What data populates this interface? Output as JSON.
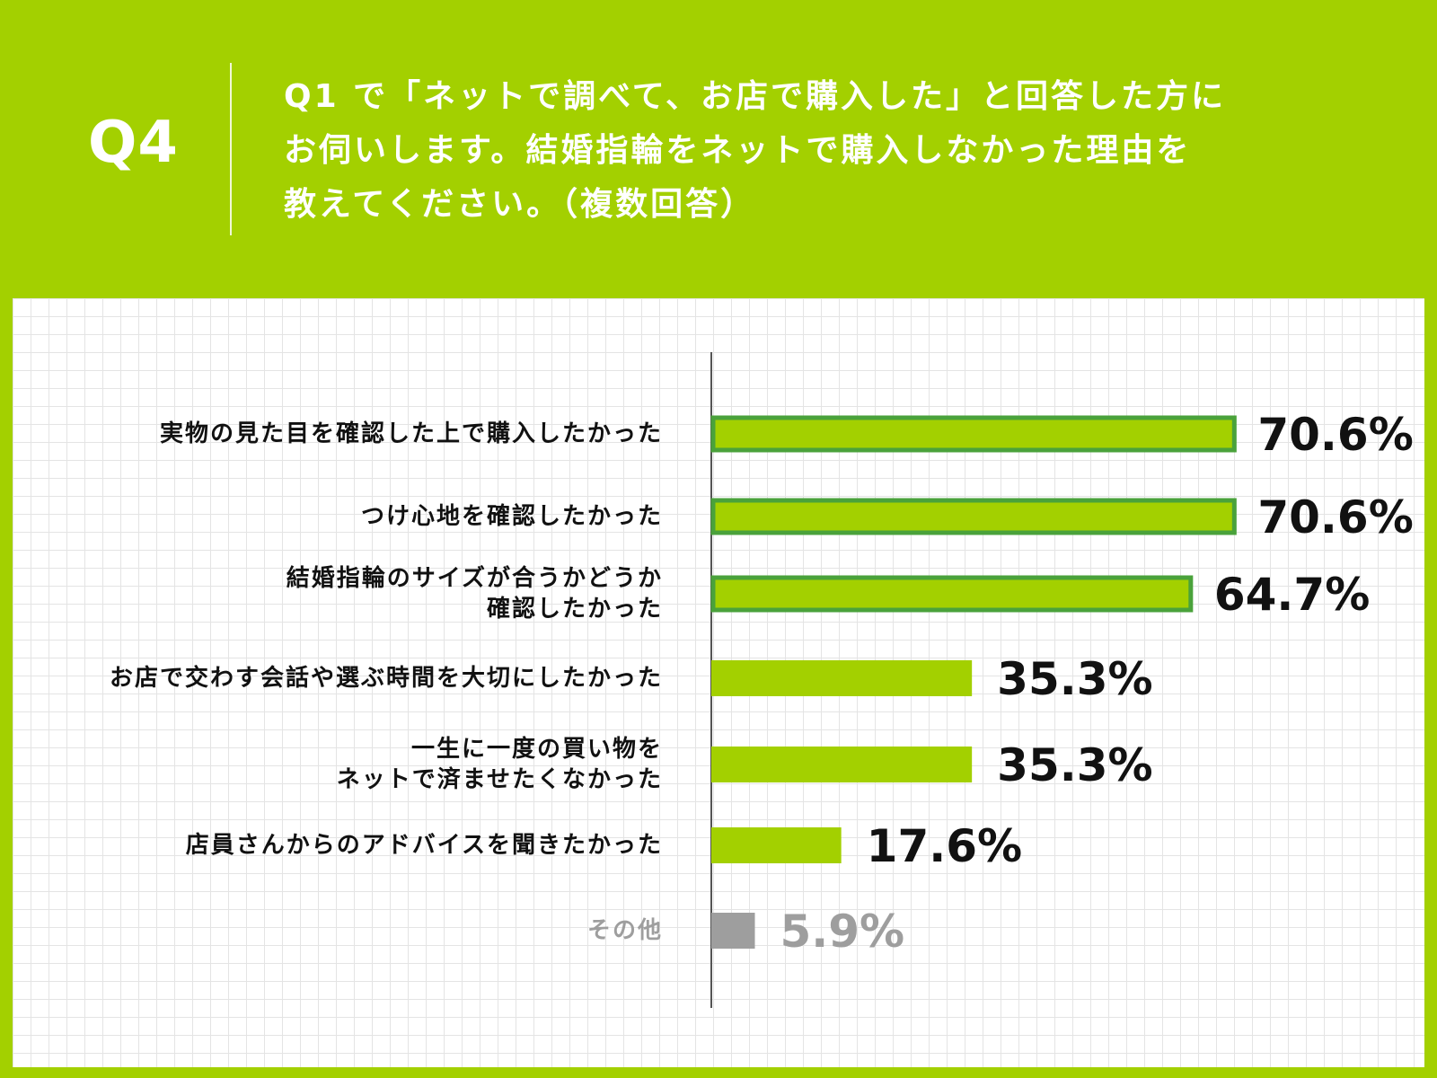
{
  "header": {
    "q_label": "Q4",
    "question_lines": [
      "Q1 で「ネットで調べて、お店で購入した」と回答した方に",
      "お伺いします。結婚指輪をネットで購入しなかった理由を",
      "教えてください。（複数回答）"
    ]
  },
  "colors": {
    "background": "#a3d000",
    "bar_fill": "#a3d000",
    "bar_outline": "#4aa23b",
    "other_bar": "#9e9e9e",
    "label_text": "#111111",
    "other_text": "#9e9e9e"
  },
  "chart_data": {
    "type": "bar",
    "orientation": "horizontal",
    "categories": [
      "実物の見た目を確認した上で購入したかった",
      "つけ心地を確認したかった",
      "結婚指輪のサイズが合うかどうか\n確認したかった",
      "お店で交わす会話や選ぶ時間を大切にしたかった",
      "一生に一度の買い物を\nネットで済ませたくなかった",
      "店員さんからのアドバイスを聞きたかった",
      "その他"
    ],
    "values": [
      70.6,
      70.6,
      64.7,
      35.3,
      35.3,
      17.6,
      5.9
    ],
    "value_labels": [
      "70.6%",
      "70.6%",
      "64.7%",
      "35.3%",
      "35.3%",
      "17.6%",
      "5.9%"
    ],
    "highlighted": [
      true,
      true,
      true,
      false,
      false,
      false,
      false
    ],
    "muted": [
      false,
      false,
      false,
      false,
      false,
      false,
      true
    ],
    "xlim": [
      0,
      100
    ],
    "unit": "%",
    "grid": true
  }
}
